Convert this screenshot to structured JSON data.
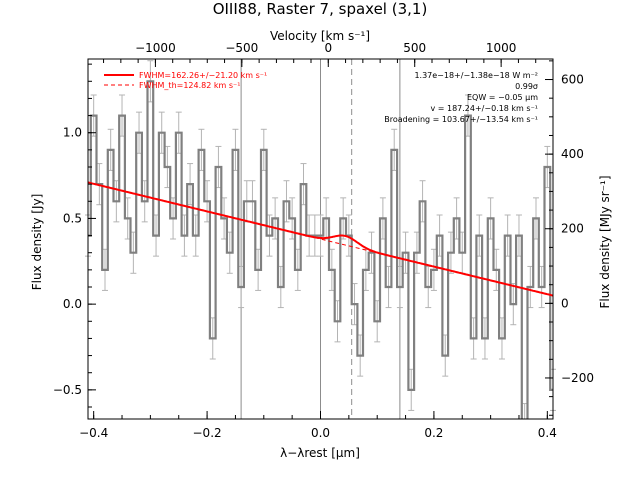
{
  "chart_data": {
    "type": "line",
    "title": "OIII88, Raster 7, spaxel (3,1)",
    "xlabel": "λ−λrest [μm]",
    "ylabel": "Flux density [Jy]",
    "ylabel_right": "Flux density [MJy sr⁻¹]",
    "xlabel_top": "Velocity [km s⁻¹]",
    "xlim": [
      -0.41,
      0.41
    ],
    "ylim": [
      -0.67,
      1.43
    ],
    "right_axis_lim": [
      -310,
      655
    ],
    "top_axis_lim": [
      -1390,
      1300
    ],
    "x_ticks": [
      {
        "value": -0.4,
        "label": "−0.4"
      },
      {
        "value": -0.2,
        "label": "−0.2"
      },
      {
        "value": 0.0,
        "label": "0.0"
      },
      {
        "value": 0.2,
        "label": "0.2"
      },
      {
        "value": 0.4,
        "label": "0.4"
      }
    ],
    "y_ticks": [
      {
        "value": -0.5,
        "label": "−0.5"
      },
      {
        "value": 0.0,
        "label": "0.0"
      },
      {
        "value": 0.5,
        "label": "0.5"
      },
      {
        "value": 1.0,
        "label": "1.0"
      }
    ],
    "right_ticks": [
      {
        "value": -200,
        "label": "−200"
      },
      {
        "value": 0,
        "label": "0"
      },
      {
        "value": 200,
        "label": "200"
      },
      {
        "value": 400,
        "label": "400"
      },
      {
        "value": 600,
        "label": "600"
      }
    ],
    "top_ticks": [
      {
        "value": -1000,
        "label": "−1000"
      },
      {
        "value": -500,
        "label": "−500"
      },
      {
        "value": 0,
        "label": "0"
      },
      {
        "value": 500,
        "label": "500"
      },
      {
        "value": 1000,
        "label": "1000"
      }
    ],
    "vertical_lines": [
      {
        "x": -0.14,
        "style": "solid"
      },
      {
        "x": 0.0,
        "style": "solid"
      },
      {
        "x": 0.055,
        "style": "dashed"
      },
      {
        "x": 0.14,
        "style": "solid"
      }
    ],
    "series": [
      {
        "kind": "step",
        "color": "#808080",
        "x": [
          -0.41,
          -0.4,
          -0.39,
          -0.38,
          -0.37,
          -0.36,
          -0.35,
          -0.34,
          -0.33,
          -0.32,
          -0.31,
          -0.3,
          -0.29,
          -0.28,
          -0.27,
          -0.26,
          -0.25,
          -0.24,
          -0.23,
          -0.22,
          -0.21,
          -0.2,
          -0.19,
          -0.18,
          -0.17,
          -0.16,
          -0.15,
          -0.14,
          -0.13,
          -0.12,
          -0.11,
          -0.1,
          -0.09,
          -0.08,
          -0.07,
          -0.06,
          -0.05,
          -0.04,
          -0.03,
          -0.02,
          -0.01,
          0.0,
          0.01,
          0.02,
          0.03,
          0.04,
          0.05,
          0.06,
          0.07,
          0.08,
          0.09,
          0.1,
          0.11,
          0.12,
          0.13,
          0.14,
          0.15,
          0.16,
          0.17,
          0.18,
          0.19,
          0.2,
          0.21,
          0.22,
          0.23,
          0.24,
          0.25,
          0.26,
          0.27,
          0.28,
          0.29,
          0.3,
          0.31,
          0.32,
          0.33,
          0.34,
          0.35,
          0.36,
          0.37,
          0.38,
          0.39,
          0.4,
          0.41
        ],
        "values": [
          0.4,
          1.1,
          0.7,
          0.2,
          0.9,
          0.6,
          1.1,
          0.5,
          0.3,
          1.0,
          0.6,
          1.3,
          0.4,
          1.0,
          0.8,
          0.5,
          1.0,
          0.4,
          0.7,
          0.4,
          0.9,
          0.6,
          -0.2,
          0.8,
          0.5,
          0.3,
          0.9,
          0.1,
          0.6,
          0.6,
          0.2,
          0.9,
          0.4,
          0.5,
          0.1,
          0.6,
          0.5,
          0.2,
          0.7,
          0.4,
          0.4,
          0.4,
          0.5,
          0.2,
          -0.1,
          0.5,
          0.4,
          0.0,
          -0.3,
          0.2,
          0.3,
          -0.1,
          0.5,
          0.1,
          0.9,
          0.1,
          0.3,
          -0.5,
          0.3,
          0.6,
          0.1,
          0.2,
          0.4,
          -0.3,
          0.3,
          0.5,
          0.3,
          1.1,
          -0.2,
          0.4,
          -0.2,
          0.5,
          0.2,
          -0.2,
          0.4,
          0.0,
          0.4,
          -0.7,
          0.1,
          0.5,
          0.1,
          0.8,
          -0.5
        ]
      },
      {
        "kind": "fit",
        "color": "#ff0000",
        "continuum_at_xmin": 0.71,
        "continuum_at_xmax": 0.05,
        "line_center": 0.044,
        "line_peak": 0.053,
        "line_sigma": 0.021
      }
    ],
    "legend": {
      "placement": "top-left",
      "entries": [
        {
          "label": "FWHM=162.26+/−21.20 km s⁻¹",
          "style": "solid",
          "color": "#ff0000"
        },
        {
          "label": "FWHM_th=124.82 km s⁻¹",
          "style": "dashed",
          "color": "#ff0000"
        }
      ]
    },
    "annotations": [
      "1.37e−18+/−1.38e−18 W m⁻²",
      "0.99σ",
      "EQW = −0.05 μm",
      "v = 187.24+/−0.18 km s⁻¹",
      "Broadening = 103.67+/−13.54 km s⁻¹"
    ]
  }
}
